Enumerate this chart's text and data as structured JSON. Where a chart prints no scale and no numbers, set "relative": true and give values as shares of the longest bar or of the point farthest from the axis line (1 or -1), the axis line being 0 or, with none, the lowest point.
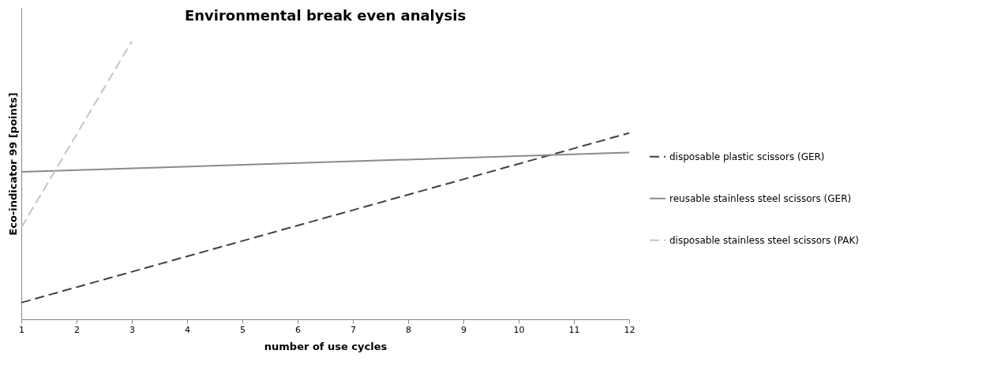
{
  "chart_data": {
    "type": "line",
    "title": "Environmental break even analysis",
    "xlabel": "number of use cycles",
    "ylabel": "Eco-indicator 99 [points]",
    "relative": true,
    "xlim": [
      1,
      12
    ],
    "xticks": [
      1,
      2,
      3,
      4,
      5,
      6,
      7,
      8,
      9,
      10,
      11,
      12
    ],
    "legend": "right",
    "grid": false,
    "marker": "none",
    "series": [
      {
        "name": "disposable plastic scissors (GER)",
        "color": "#404040",
        "line_style": "dashed",
        "x": [
          1,
          12
        ],
        "values": [
          0.06,
          0.67
        ]
      },
      {
        "name": "reusable stainless steel scissors (GER)",
        "color": "#8a8a8a",
        "line_style": "solid",
        "x": [
          1,
          12
        ],
        "values": [
          0.53,
          0.6
        ]
      },
      {
        "name": "disposable stainless steel scissors (PAK)",
        "color": "#c4c4c4",
        "line_style": "dashed",
        "x": [
          1,
          3
        ],
        "values": [
          0.33,
          1
        ]
      }
    ]
  }
}
